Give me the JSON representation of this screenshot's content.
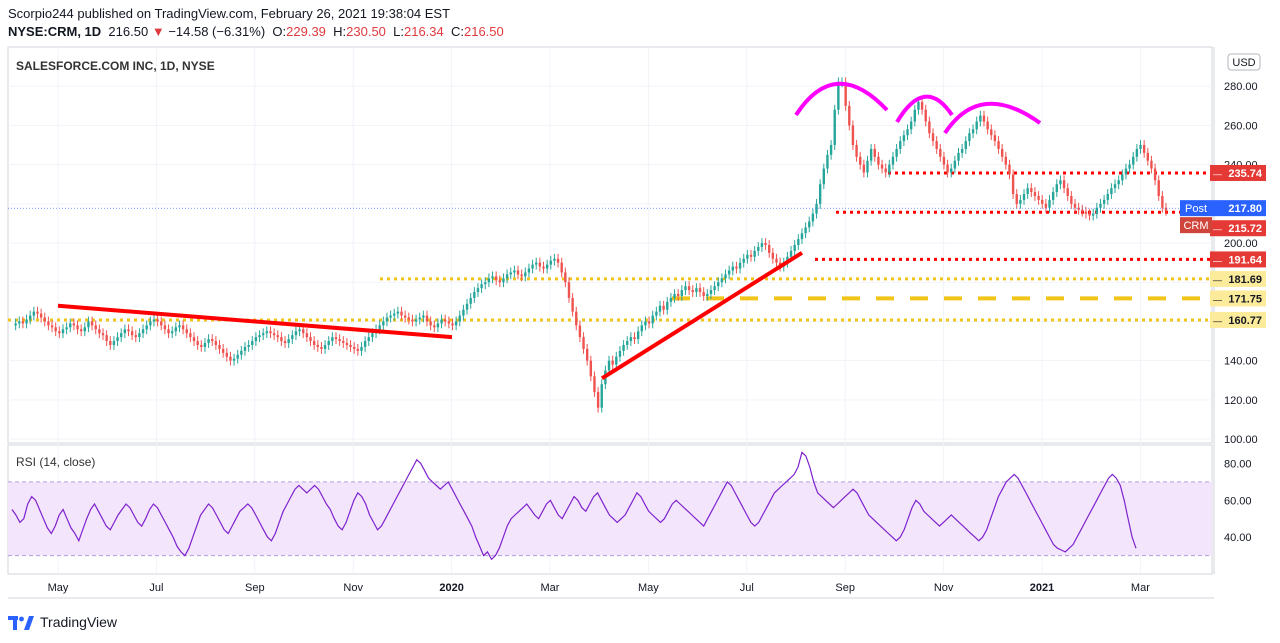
{
  "header": {
    "published_line": "Scorpio244 published on TradingView.com, February 26, 2021 19:38:04 EST",
    "symbol": "NYSE:CRM, 1D",
    "last": "216.50",
    "change": "−14.58 (−6.31%)",
    "o_label": "O:",
    "o_value": "229.39",
    "h_label": "H:",
    "h_value": "230.50",
    "l_label": "L:",
    "l_value": "216.34",
    "c_label": "C:",
    "c_value": "216.50"
  },
  "footer": {
    "brand": "TradingView"
  },
  "chart_data": [
    {
      "type": "line",
      "title": "SALESFORCE.COM INC, 1D, NYSE",
      "currency": "USD",
      "x_ticks": [
        "May",
        "Jul",
        "Sep",
        "Nov",
        "2020",
        "Mar",
        "May",
        "Jul",
        "Sep",
        "Nov",
        "2021",
        "Mar"
      ],
      "y_ticks": [
        100,
        120,
        140,
        160,
        180,
        200,
        220,
        240,
        260,
        280
      ],
      "ylim": [
        98,
        300
      ],
      "grid": true,
      "series": [
        {
          "values": [
            158,
            159,
            160,
            159,
            161,
            163,
            165,
            164,
            162,
            160,
            158,
            157,
            155,
            154,
            156,
            157,
            159,
            158,
            156,
            155,
            157,
            160,
            158,
            156,
            154,
            153,
            150,
            148,
            150,
            152,
            154,
            156,
            155,
            153,
            152,
            154,
            156,
            158,
            160,
            161,
            160,
            158,
            156,
            154,
            155,
            157,
            158,
            156,
            154,
            152,
            150,
            148,
            147,
            149,
            151,
            150,
            148,
            146,
            144,
            142,
            140,
            141,
            143,
            145,
            147,
            148,
            150,
            152,
            153,
            154,
            155,
            154,
            153,
            152,
            150,
            149,
            151,
            153,
            155,
            156,
            154,
            152,
            150,
            148,
            147,
            146,
            148,
            150,
            152,
            151,
            150,
            149,
            148,
            147,
            146,
            145,
            147,
            150,
            152,
            154,
            156,
            158,
            160,
            162,
            163,
            164,
            165,
            163,
            162,
            161,
            160,
            161,
            162,
            163,
            160,
            158,
            157,
            159,
            161,
            160,
            159,
            158,
            160,
            163,
            166,
            169,
            172,
            175,
            177,
            179,
            180,
            182,
            183,
            181,
            180,
            182,
            184,
            185,
            186,
            184,
            183,
            185,
            187,
            189,
            190,
            188,
            187,
            189,
            191,
            192,
            190,
            185,
            180,
            172,
            165,
            158,
            152,
            146,
            140,
            132,
            124,
            116,
            128,
            135,
            140,
            138,
            142,
            145,
            148,
            150,
            152,
            151,
            155,
            158,
            160,
            159,
            163,
            165,
            168,
            166,
            170,
            172,
            174,
            173,
            176,
            178,
            176,
            175,
            177,
            175,
            173,
            174,
            176,
            178,
            180,
            182,
            184,
            186,
            188,
            187,
            190,
            192,
            194,
            193,
            196,
            198,
            200,
            199,
            195,
            192,
            190,
            188,
            190,
            193,
            196,
            199,
            202,
            205,
            208,
            211,
            215,
            220,
            230,
            238,
            245,
            250,
            268,
            282,
            282,
            270,
            260,
            250,
            244,
            240,
            236,
            242,
            248,
            244,
            240,
            238,
            236,
            240,
            244,
            248,
            252,
            255,
            258,
            262,
            268,
            272,
            268,
            262,
            256,
            252,
            248,
            244,
            240,
            236,
            238,
            242,
            246,
            248,
            252,
            256,
            258,
            262,
            265,
            262,
            258,
            255,
            252,
            248,
            244,
            240,
            235,
            225,
            220,
            222,
            225,
            228,
            226,
            224,
            222,
            220,
            218,
            222,
            226,
            230,
            232,
            228,
            224,
            220,
            218,
            217,
            216,
            215,
            214,
            215,
            218,
            220,
            222,
            225,
            228,
            230,
            232,
            235,
            238,
            240,
            244,
            248,
            250,
            246,
            242,
            238,
            232,
            224,
            218,
            216.5
          ]
        }
      ],
      "levels": [
        235.74,
        215.72,
        191.64,
        181.69,
        171.75,
        160.77
      ],
      "last_price": 216.5,
      "post_price": 217.8,
      "last_price_label": "217.80",
      "post_label": "Post",
      "crm_label": "CRM",
      "level_labels": [
        "235.74",
        "215.72",
        "191.64",
        "181.69",
        "171.75",
        "160.77"
      ],
      "annotations": [
        "head-and-shoulders arcs (magenta)",
        "red trend lines",
        "red dotted support/resistance lines",
        "yellow dotted/dashed levels"
      ],
      "colors": {
        "up": "#26a69a",
        "down": "#ef5350",
        "trend": "#ff0000",
        "level_red": "#ff0000",
        "level_yellow": "#f0c419",
        "arc": "#ff00ff",
        "rsi": "#7e22ce",
        "rsi_band": "#f3e5fb",
        "label_red": "#e53935",
        "label_yellow": "#fceb9b",
        "post_blue": "#2962ff",
        "crm_red": "#d0453b"
      }
    },
    {
      "type": "line",
      "title": "RSI (14, close)",
      "y_ticks": [
        40,
        60,
        80
      ],
      "ylim": [
        20,
        90
      ],
      "band": [
        30,
        70
      ],
      "series": [
        {
          "values": [
            55,
            52,
            48,
            50,
            58,
            62,
            60,
            55,
            50,
            45,
            42,
            46,
            52,
            55,
            50,
            45,
            42,
            38,
            44,
            50,
            55,
            58,
            54,
            50,
            46,
            44,
            48,
            52,
            55,
            58,
            56,
            52,
            48,
            46,
            50,
            55,
            58,
            56,
            52,
            48,
            44,
            40,
            35,
            32,
            30,
            34,
            40,
            46,
            52,
            55,
            58,
            56,
            52,
            48,
            44,
            42,
            46,
            50,
            54,
            56,
            58,
            56,
            52,
            48,
            44,
            40,
            38,
            42,
            48,
            54,
            58,
            62,
            66,
            68,
            66,
            64,
            66,
            68,
            66,
            62,
            58,
            55,
            50,
            46,
            44,
            48,
            54,
            60,
            64,
            62,
            58,
            52,
            48,
            44,
            46,
            50,
            54,
            58,
            62,
            66,
            70,
            74,
            78,
            82,
            80,
            76,
            72,
            70,
            68,
            66,
            68,
            70,
            66,
            62,
            58,
            54,
            50,
            46,
            40,
            35,
            30,
            32,
            28,
            30,
            34,
            40,
            46,
            50,
            52,
            54,
            56,
            58,
            55,
            52,
            50,
            54,
            58,
            60,
            56,
            52,
            50,
            54,
            58,
            62,
            60,
            56,
            54,
            58,
            62,
            64,
            60,
            56,
            52,
            50,
            48,
            50,
            52,
            56,
            60,
            64,
            62,
            58,
            54,
            52,
            50,
            48,
            50,
            54,
            58,
            60,
            58,
            56,
            54,
            52,
            50,
            48,
            46,
            50,
            54,
            58,
            62,
            66,
            70,
            68,
            64,
            60,
            56,
            52,
            48,
            46,
            48,
            52,
            56,
            60,
            64,
            66,
            68,
            70,
            72,
            74,
            78,
            86,
            84,
            78,
            70,
            64,
            62,
            60,
            58,
            56,
            58,
            60,
            62,
            64,
            66,
            64,
            60,
            56,
            52,
            50,
            48,
            46,
            44,
            42,
            40,
            38,
            40,
            44,
            50,
            56,
            60,
            58,
            54,
            52,
            50,
            48,
            46,
            48,
            50,
            52,
            50,
            48,
            46,
            44,
            42,
            40,
            38,
            40,
            44,
            50,
            56,
            62,
            66,
            70,
            72,
            74,
            72,
            68,
            64,
            60,
            56,
            52,
            48,
            44,
            40,
            36,
            34,
            33,
            32,
            34,
            36,
            40,
            44,
            48,
            52,
            56,
            60,
            64,
            68,
            72,
            74,
            72,
            68,
            60,
            50,
            40,
            34
          ]
        }
      ],
      "band_labels": [
        "80.00",
        "60.00",
        "40.00"
      ]
    }
  ]
}
